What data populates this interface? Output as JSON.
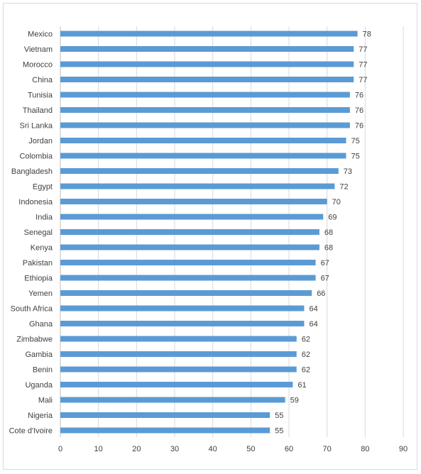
{
  "chart_data": {
    "type": "bar",
    "orientation": "horizontal",
    "categories": [
      "Mexico",
      "Vietnam",
      "Morocco",
      "China",
      "Tunisia",
      "Thailand",
      "Sri Lanka",
      "Jordan",
      "Colombia",
      "Bangladesh",
      "Egypt",
      "Indonesia",
      "India",
      "Senegal",
      "Kenya",
      "Pakistan",
      "Ethiopia",
      "Yemen",
      "South Africa",
      "Ghana",
      "Zimbabwe",
      "Gambia",
      "Benin",
      "Uganda",
      "Mali",
      "Nigeria",
      "Cote d'Ivoire"
    ],
    "values": [
      78,
      77,
      77,
      77,
      76,
      76,
      76,
      75,
      75,
      73,
      72,
      70,
      69,
      68,
      68,
      67,
      67,
      66,
      64,
      64,
      62,
      62,
      62,
      61,
      59,
      55,
      55
    ],
    "data_labels": [
      "78",
      "77",
      "77",
      "77",
      "76",
      "76",
      "76",
      "75",
      "75",
      "73",
      "72",
      "70",
      "69",
      "68",
      "68",
      "67",
      "67",
      "66",
      "64",
      "64",
      "62",
      "62",
      "62",
      "61",
      "59",
      "55",
      "55"
    ],
    "x_ticks": [
      "0",
      "10",
      "20",
      "30",
      "40",
      "50",
      "60",
      "70",
      "80",
      "90"
    ],
    "xlim": [
      0,
      90
    ],
    "grid": "vertical",
    "legend": "none",
    "bar_color": "#5b9bd5",
    "grid_color": "#d9d9d9"
  }
}
